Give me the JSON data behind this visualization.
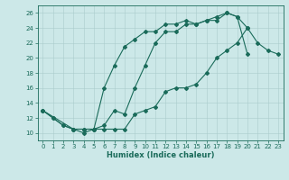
{
  "xlabel": "Humidex (Indice chaleur)",
  "xlim": [
    -0.5,
    23.5
  ],
  "ylim": [
    9,
    27
  ],
  "xticks": [
    0,
    1,
    2,
    3,
    4,
    5,
    6,
    7,
    8,
    9,
    10,
    11,
    12,
    13,
    14,
    15,
    16,
    17,
    18,
    19,
    20,
    21,
    22,
    23
  ],
  "yticks": [
    10,
    12,
    14,
    16,
    18,
    20,
    22,
    24,
    26
  ],
  "bg_color": "#cce8e8",
  "line_color": "#1a6b5a",
  "grid_color": "#aacccc",
  "line1_x": [
    0,
    1,
    2,
    3,
    4,
    5,
    6,
    7,
    8,
    9,
    10,
    11,
    12,
    13,
    14,
    15,
    16,
    17,
    18,
    19,
    20
  ],
  "line1_y": [
    13,
    12,
    11,
    10.5,
    10.5,
    10.5,
    11,
    13,
    12.5,
    16,
    19,
    22,
    23.5,
    23.5,
    24.5,
    24.5,
    25,
    25,
    26,
    25.5,
    20.5
  ],
  "line2_x": [
    0,
    1,
    2,
    3,
    4,
    5,
    6,
    7,
    8,
    9,
    10,
    11,
    12,
    13,
    14,
    15,
    16,
    17,
    18,
    19,
    20,
    21,
    22,
    23
  ],
  "line2_y": [
    13,
    12,
    11,
    10.5,
    10.5,
    10.5,
    10.5,
    10.5,
    10.5,
    12.5,
    13,
    13.5,
    15.5,
    16,
    16,
    16.5,
    18,
    20,
    21,
    22,
    24,
    22,
    21,
    20.5
  ],
  "line3_x": [
    0,
    3,
    4,
    5,
    6,
    7,
    8,
    9,
    10,
    11,
    12,
    13,
    14,
    15,
    16,
    17,
    18,
    19,
    20
  ],
  "line3_y": [
    13,
    10.5,
    10,
    10.5,
    16,
    19,
    21.5,
    22.5,
    23.5,
    23.5,
    24.5,
    24.5,
    25,
    24.5,
    25,
    25.5,
    26,
    25.5,
    24
  ],
  "marker": "D",
  "marker_size": 2.0,
  "line_width": 0.8,
  "tick_fontsize": 5.0,
  "xlabel_fontsize": 6.0
}
